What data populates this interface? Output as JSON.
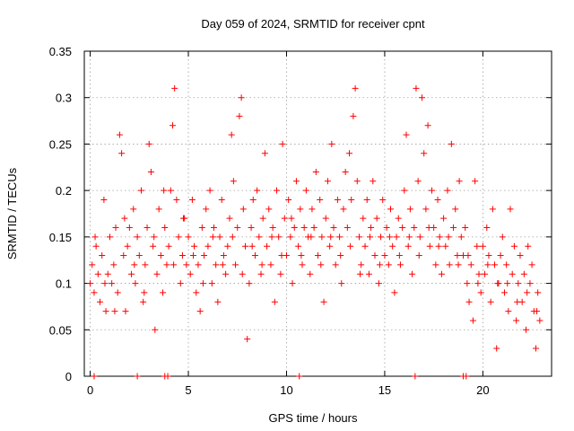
{
  "chart_data": {
    "type": "scatter",
    "title": "Day 059 of 2024, SRMTID for receiver cpnt",
    "xlabel": "GPS time / hours",
    "ylabel": "SRMTID / TECUs",
    "xlim": [
      -0.3,
      23.5
    ],
    "ylim": [
      0,
      0.35
    ],
    "x_ticks": [
      0,
      5,
      10,
      15,
      20
    ],
    "x_tick_labels": [
      "0",
      "5",
      "10",
      "15",
      "20"
    ],
    "y_ticks": [
      0,
      0.05,
      0.1,
      0.15,
      0.2,
      0.25,
      0.3,
      0.35
    ],
    "y_tick_labels": [
      "0",
      "0.05",
      "0.1",
      "0.15",
      "0.2",
      "0.25",
      "0.3",
      "0.35"
    ],
    "grid": true,
    "legend": "none",
    "marker": "plus",
    "color": "#ff0000",
    "series": [
      {
        "values": [
          [
            0.0,
            0.1
          ],
          [
            0.1,
            0.12
          ],
          [
            0.2,
            0.09
          ],
          [
            0.3,
            0.14
          ],
          [
            0.4,
            0.11
          ],
          [
            0.5,
            0.08
          ],
          [
            0.6,
            0.13
          ],
          [
            0.7,
            0.19
          ],
          [
            0.8,
            0.07
          ],
          [
            0.9,
            0.11
          ],
          [
            1.0,
            0.15
          ],
          [
            1.1,
            0.1
          ],
          [
            1.2,
            0.12
          ],
          [
            1.3,
            0.16
          ],
          [
            1.4,
            0.09
          ],
          [
            1.5,
            0.26
          ],
          [
            1.6,
            0.24
          ],
          [
            1.7,
            0.13
          ],
          [
            1.8,
            0.07
          ],
          [
            1.9,
            0.14
          ],
          [
            2.0,
            0.16
          ],
          [
            2.1,
            0.11
          ],
          [
            2.2,
            0.18
          ],
          [
            2.3,
            0.1
          ],
          [
            2.4,
            0.15
          ],
          [
            2.5,
            0.13
          ],
          [
            2.6,
            0.2
          ],
          [
            2.7,
            0.08
          ],
          [
            2.8,
            0.12
          ],
          [
            2.9,
            0.16
          ],
          [
            3.0,
            0.25
          ],
          [
            3.1,
            0.22
          ],
          [
            3.2,
            0.14
          ],
          [
            3.3,
            0.05
          ],
          [
            3.4,
            0.11
          ],
          [
            3.5,
            0.18
          ],
          [
            3.6,
            0.13
          ],
          [
            3.7,
            0.09
          ],
          [
            3.8,
            0.16
          ],
          [
            3.9,
            0.12
          ],
          [
            4.0,
            0.14
          ],
          [
            4.1,
            0.2
          ],
          [
            4.2,
            0.27
          ],
          [
            4.3,
            0.31
          ],
          [
            4.4,
            0.19
          ],
          [
            4.5,
            0.15
          ],
          [
            4.6,
            0.1
          ],
          [
            4.7,
            0.13
          ],
          [
            4.8,
            0.17
          ],
          [
            4.9,
            0.12
          ],
          [
            5.0,
            0.15
          ],
          [
            5.1,
            0.11
          ],
          [
            5.2,
            0.19
          ],
          [
            5.3,
            0.14
          ],
          [
            5.4,
            0.09
          ],
          [
            5.5,
            0.12
          ],
          [
            5.6,
            0.07
          ],
          [
            5.7,
            0.16
          ],
          [
            5.8,
            0.13
          ],
          [
            5.9,
            0.18
          ],
          [
            6.0,
            0.14
          ],
          [
            6.1,
            0.2
          ],
          [
            6.2,
            0.1
          ],
          [
            6.3,
            0.16
          ],
          [
            6.4,
            0.12
          ],
          [
            6.5,
            0.08
          ],
          [
            6.6,
            0.15
          ],
          [
            6.7,
            0.19
          ],
          [
            6.8,
            0.13
          ],
          [
            6.9,
            0.11
          ],
          [
            7.0,
            0.14
          ],
          [
            7.1,
            0.17
          ],
          [
            7.2,
            0.26
          ],
          [
            7.3,
            0.21
          ],
          [
            7.4,
            0.12
          ],
          [
            7.5,
            0.16
          ],
          [
            7.6,
            0.28
          ],
          [
            7.7,
            0.3
          ],
          [
            7.8,
            0.18
          ],
          [
            7.9,
            0.14
          ],
          [
            8.0,
            0.04
          ],
          [
            8.1,
            0.1
          ],
          [
            8.2,
            0.16
          ],
          [
            8.3,
            0.19
          ],
          [
            8.4,
            0.13
          ],
          [
            8.5,
            0.2
          ],
          [
            8.6,
            0.15
          ],
          [
            8.7,
            0.11
          ],
          [
            8.8,
            0.17
          ],
          [
            8.9,
            0.24
          ],
          [
            9.0,
            0.14
          ],
          [
            9.1,
            0.18
          ],
          [
            9.2,
            0.12
          ],
          [
            9.3,
            0.16
          ],
          [
            9.4,
            0.08
          ],
          [
            9.5,
            0.2
          ],
          [
            9.6,
            0.15
          ],
          [
            9.7,
            0.11
          ],
          [
            9.8,
            0.25
          ],
          [
            9.9,
            0.17
          ],
          [
            10.0,
            0.13
          ],
          [
            10.1,
            0.19
          ],
          [
            10.2,
            0.15
          ],
          [
            10.3,
            0.1
          ],
          [
            10.4,
            0.16
          ],
          [
            10.5,
            0.21
          ],
          [
            10.6,
            0.14
          ],
          [
            10.7,
            0.18
          ],
          [
            10.8,
            0.12
          ],
          [
            10.9,
            0.16
          ],
          [
            11.0,
            0.2
          ],
          [
            11.1,
            0.15
          ],
          [
            11.2,
            0.11
          ],
          [
            11.3,
            0.18
          ],
          [
            11.4,
            0.16
          ],
          [
            11.5,
            0.22
          ],
          [
            11.6,
            0.13
          ],
          [
            11.7,
            0.19
          ],
          [
            11.8,
            0.15
          ],
          [
            11.9,
            0.08
          ],
          [
            12.0,
            0.17
          ],
          [
            12.1,
            0.21
          ],
          [
            12.2,
            0.14
          ],
          [
            12.3,
            0.25
          ],
          [
            12.4,
            0.16
          ],
          [
            12.5,
            0.12
          ],
          [
            12.6,
            0.19
          ],
          [
            12.7,
            0.15
          ],
          [
            12.8,
            0.1
          ],
          [
            12.9,
            0.18
          ],
          [
            13.0,
            0.22
          ],
          [
            13.1,
            0.16
          ],
          [
            13.2,
            0.24
          ],
          [
            13.3,
            0.19
          ],
          [
            13.4,
            0.28
          ],
          [
            13.5,
            0.31
          ],
          [
            13.6,
            0.21
          ],
          [
            13.7,
            0.15
          ],
          [
            13.8,
            0.12
          ],
          [
            13.9,
            0.17
          ],
          [
            14.0,
            0.14
          ],
          [
            14.1,
            0.19
          ],
          [
            14.2,
            0.11
          ],
          [
            14.3,
            0.16
          ],
          [
            14.4,
            0.21
          ],
          [
            14.5,
            0.13
          ],
          [
            14.6,
            0.17
          ],
          [
            14.7,
            0.1
          ],
          [
            14.8,
            0.15
          ],
          [
            14.9,
            0.19
          ],
          [
            15.0,
            0.13
          ],
          [
            15.1,
            0.16
          ],
          [
            15.2,
            0.12
          ],
          [
            15.3,
            0.18
          ],
          [
            15.4,
            0.14
          ],
          [
            15.5,
            0.09
          ],
          [
            15.6,
            0.15
          ],
          [
            15.7,
            0.17
          ],
          [
            15.8,
            0.12
          ],
          [
            15.9,
            0.16
          ],
          [
            16.0,
            0.2
          ],
          [
            16.1,
            0.26
          ],
          [
            16.2,
            0.14
          ],
          [
            16.3,
            0.18
          ],
          [
            16.4,
            0.11
          ],
          [
            16.5,
            0.16
          ],
          [
            16.6,
            0.31
          ],
          [
            16.7,
            0.21
          ],
          [
            16.8,
            0.15
          ],
          [
            16.9,
            0.3
          ],
          [
            17.0,
            0.24
          ],
          [
            17.1,
            0.18
          ],
          [
            17.2,
            0.27
          ],
          [
            17.3,
            0.14
          ],
          [
            17.4,
            0.2
          ],
          [
            17.5,
            0.16
          ],
          [
            17.6,
            0.12
          ],
          [
            17.7,
            0.19
          ],
          [
            17.8,
            0.15
          ],
          [
            17.9,
            0.11
          ],
          [
            18.0,
            0.17
          ],
          [
            18.1,
            0.14
          ],
          [
            18.2,
            0.2
          ],
          [
            18.3,
            0.12
          ],
          [
            18.4,
            0.25
          ],
          [
            18.5,
            0.16
          ],
          [
            18.6,
            0.18
          ],
          [
            18.7,
            0.13
          ],
          [
            18.8,
            0.21
          ],
          [
            18.9,
            0.15
          ],
          [
            19.0,
            0.13
          ],
          [
            19.1,
            0.16
          ],
          [
            19.2,
            0.1
          ],
          [
            19.3,
            0.08
          ],
          [
            19.4,
            0.12
          ],
          [
            19.5,
            0.06
          ],
          [
            19.6,
            0.21
          ],
          [
            19.7,
            0.14
          ],
          [
            19.8,
            0.11
          ],
          [
            19.9,
            0.09
          ],
          [
            20.0,
            0.14
          ],
          [
            20.1,
            0.11
          ],
          [
            20.2,
            0.16
          ],
          [
            20.3,
            0.13
          ],
          [
            20.4,
            0.08
          ],
          [
            20.5,
            0.18
          ],
          [
            20.6,
            0.12
          ],
          [
            20.7,
            0.03
          ],
          [
            20.8,
            0.1
          ],
          [
            20.9,
            0.13
          ],
          [
            21.0,
            0.15
          ],
          [
            21.1,
            0.09
          ],
          [
            21.2,
            0.12
          ],
          [
            21.3,
            0.07
          ],
          [
            21.4,
            0.18
          ],
          [
            21.5,
            0.11
          ],
          [
            21.6,
            0.14
          ],
          [
            21.7,
            0.06
          ],
          [
            21.8,
            0.1
          ],
          [
            21.9,
            0.13
          ],
          [
            22.0,
            0.08
          ],
          [
            22.1,
            0.11
          ],
          [
            22.2,
            0.05
          ],
          [
            22.3,
            0.14
          ],
          [
            22.4,
            0.1
          ],
          [
            22.5,
            0.12
          ],
          [
            22.6,
            0.07
          ],
          [
            22.7,
            0.03
          ],
          [
            22.8,
            0.09
          ],
          [
            22.9,
            0.06
          ],
          [
            0.25,
            0.15
          ],
          [
            0.75,
            0.1
          ],
          [
            1.25,
            0.07
          ],
          [
            1.75,
            0.17
          ],
          [
            2.25,
            0.12
          ],
          [
            2.75,
            0.09
          ],
          [
            3.25,
            0.15
          ],
          [
            3.75,
            0.2
          ],
          [
            4.25,
            0.12
          ],
          [
            4.75,
            0.17
          ],
          [
            5.25,
            0.13
          ],
          [
            5.75,
            0.1
          ],
          [
            6.25,
            0.15
          ],
          [
            6.75,
            0.12
          ],
          [
            7.25,
            0.15
          ],
          [
            7.75,
            0.11
          ],
          [
            8.25,
            0.14
          ],
          [
            8.75,
            0.12
          ],
          [
            9.25,
            0.15
          ],
          [
            9.75,
            0.13
          ],
          [
            10.25,
            0.17
          ],
          [
            10.75,
            0.13
          ],
          [
            11.25,
            0.15
          ],
          [
            11.75,
            0.12
          ],
          [
            12.25,
            0.15
          ],
          [
            12.75,
            0.13
          ],
          [
            13.25,
            0.14
          ],
          [
            13.75,
            0.11
          ],
          [
            14.25,
            0.15
          ],
          [
            14.75,
            0.12
          ],
          [
            15.25,
            0.15
          ],
          [
            15.75,
            0.13
          ],
          [
            16.25,
            0.15
          ],
          [
            16.75,
            0.13
          ],
          [
            17.25,
            0.16
          ],
          [
            17.75,
            0.14
          ],
          [
            18.25,
            0.15
          ],
          [
            18.75,
            0.12
          ],
          [
            19.25,
            0.13
          ],
          [
            19.75,
            0.1
          ],
          [
            20.25,
            0.12
          ],
          [
            20.75,
            0.1
          ],
          [
            21.25,
            0.1
          ],
          [
            21.75,
            0.08
          ],
          [
            22.25,
            0.09
          ],
          [
            22.75,
            0.07
          ]
        ]
      },
      {
        "values": [
          [
            0.2,
            0.0
          ],
          [
            2.4,
            0.0
          ],
          [
            3.8,
            0.0
          ],
          [
            3.95,
            0.0
          ],
          [
            10.65,
            0.0
          ],
          [
            16.55,
            0.0
          ],
          [
            19.0,
            0.0
          ],
          [
            19.15,
            0.0
          ]
        ]
      }
    ]
  }
}
